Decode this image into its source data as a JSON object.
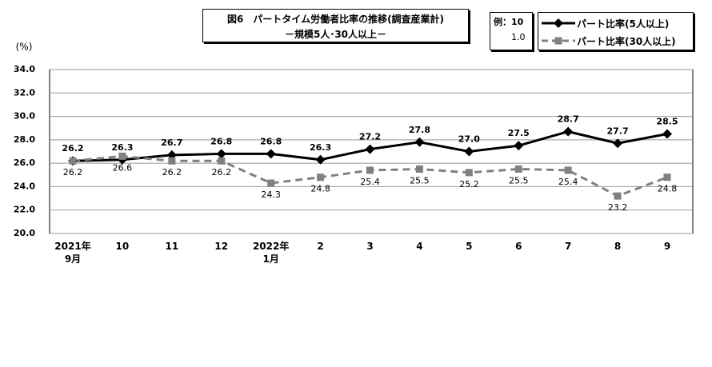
{
  "chart_data": {
    "type": "line",
    "title": "図6　パートタイム労働者比率の推移(調査産業計)",
    "subtitle": "－規模5人･30人以上－",
    "y_label": "(%)",
    "legend_note": [
      "例：10",
      "1.0"
    ],
    "categories": [
      "2021年\n9月",
      "10",
      "11",
      "12",
      "2022年\n1月",
      "2",
      "3",
      "4",
      "5",
      "6",
      "7",
      "8",
      "9"
    ],
    "series": [
      {
        "name": "パート比率(5人以上)",
        "color": "#000000",
        "marker": "diamond",
        "dashed": false,
        "values": [
          26.2,
          26.3,
          26.7,
          26.8,
          26.8,
          26.3,
          27.2,
          27.8,
          27.0,
          27.5,
          28.7,
          27.7,
          28.5
        ],
        "value_labels": [
          "26.2",
          "26.3",
          "26.7",
          "26.8",
          "26.8",
          "26.3",
          "27.2",
          "27.8",
          "27.0",
          "27.5",
          "28.7",
          "27.7",
          "28.5"
        ]
      },
      {
        "name": "パート比率(30人以上)",
        "color": "#808080",
        "marker": "square",
        "dashed": true,
        "values": [
          26.2,
          26.6,
          26.2,
          26.2,
          24.3,
          24.8,
          25.4,
          25.5,
          25.2,
          25.5,
          25.4,
          23.2,
          24.8
        ]
      }
    ],
    "ylim": [
      20,
      34
    ],
    "yticks": [
      {
        "value": 20,
        "label": "20.0"
      },
      {
        "value": 22,
        "label": "22.0"
      },
      {
        "value": 24,
        "label": "24.0"
      },
      {
        "value": 26,
        "label": "26.0"
      },
      {
        "value": 28,
        "label": "28.0"
      },
      {
        "value": 30,
        "label": "30.0"
      },
      {
        "value": 32,
        "label": "32.0"
      },
      {
        "value": 34,
        "label": "34.0"
      }
    ],
    "grid": true
  }
}
